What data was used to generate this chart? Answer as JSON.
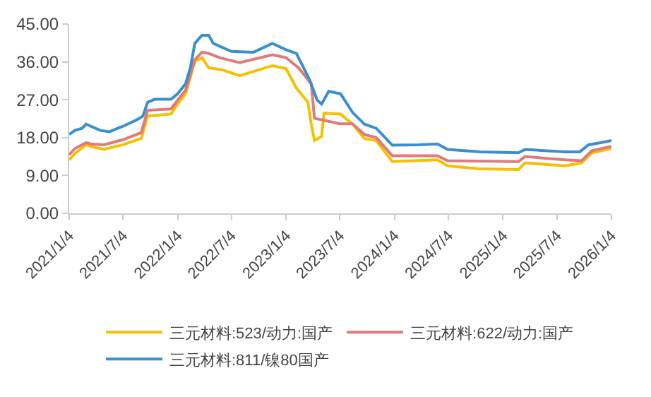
{
  "chart_data": {
    "type": "line",
    "xlim": [
      "2021-01-04",
      "2026-01-04"
    ],
    "ylim": [
      0,
      45
    ],
    "xticks": [
      {
        "value": "2021-01-04",
        "label": "2021/1/4"
      },
      {
        "value": "2021-07-04",
        "label": "2021/7/4"
      },
      {
        "value": "2022-01-04",
        "label": "2022/1/4"
      },
      {
        "value": "2022-07-04",
        "label": "2022/7/4"
      },
      {
        "value": "2023-01-04",
        "label": "2023/1/4"
      },
      {
        "value": "2023-07-04",
        "label": "2023/7/4"
      },
      {
        "value": "2024-01-04",
        "label": "2024/1/4"
      },
      {
        "value": "2024-07-04",
        "label": "2024/7/4"
      },
      {
        "value": "2025-01-04",
        "label": "2025/1/4"
      },
      {
        "value": "2025-07-04",
        "label": "2025/7/4"
      },
      {
        "value": "2026-01-04",
        "label": "2026/1/4"
      }
    ],
    "yticks": [
      {
        "value": 0,
        "label": "0.00"
      },
      {
        "value": 9,
        "label": "9.00"
      },
      {
        "value": 18,
        "label": "18.00"
      },
      {
        "value": 27,
        "label": "27.00"
      },
      {
        "value": 36,
        "label": "36.00"
      },
      {
        "value": 45,
        "label": "45.00"
      }
    ],
    "grid": false,
    "legend": "bottom",
    "line_style": "solid",
    "marker": "none",
    "series": [
      {
        "name": "三元材料:523/动力:国产",
        "color": "#f5c000",
        "x": [
          "2021-01-04",
          "2021-01-23",
          "2021-03-02",
          "2021-03-18",
          "2021-05-01",
          "2021-07-04",
          "2021-09-04",
          "2021-09-25",
          "2021-12-13",
          "2022-01-04",
          "2022-01-31",
          "2022-03-03",
          "2022-03-27",
          "2022-04-19",
          "2022-06-04",
          "2022-08-01",
          "2022-11-19",
          "2023-01-04",
          "2023-02-08",
          "2023-03-19",
          "2023-03-30",
          "2023-04-10",
          "2023-05-04",
          "2023-05-12",
          "2023-07-07",
          "2023-08-16",
          "2023-09-25",
          "2023-11-04",
          "2023-12-28",
          "2024-05-28",
          "2024-07-01",
          "2024-10-15",
          "2025-02-25",
          "2025-03-19",
          "2025-08-01",
          "2025-09-25",
          "2025-10-30",
          "2026-01-04"
        ],
        "values": [
          12.7,
          14.2,
          16.3,
          15.9,
          15.2,
          16.3,
          17.8,
          23.1,
          23.6,
          26,
          28.4,
          36.1,
          37,
          34.6,
          34.1,
          32.7,
          35.1,
          34.4,
          29.8,
          26.4,
          21.2,
          17.3,
          18.3,
          23.8,
          23.6,
          21.2,
          17.8,
          17.3,
          12.3,
          12.7,
          11.3,
          10.6,
          10.4,
          12,
          11.3,
          12,
          14.4,
          15.4
        ]
      },
      {
        "name": "三元材料:622/动力:国产",
        "color": "#e07b7b",
        "x": [
          "2021-01-04",
          "2021-01-23",
          "2021-03-02",
          "2021-03-18",
          "2021-05-01",
          "2021-07-04",
          "2021-09-04",
          "2021-09-25",
          "2021-12-13",
          "2022-01-04",
          "2022-01-31",
          "2022-03-03",
          "2022-03-27",
          "2022-04-19",
          "2022-05-25",
          "2022-08-01",
          "2022-11-19",
          "2023-01-04",
          "2023-02-15",
          "2023-03-30",
          "2023-04-10",
          "2023-07-04",
          "2023-08-16",
          "2023-09-25",
          "2023-11-04",
          "2023-12-28",
          "2024-05-28",
          "2024-07-01",
          "2025-02-25",
          "2025-03-19",
          "2025-08-01",
          "2025-09-25",
          "2025-10-30",
          "2026-01-04"
        ],
        "values": [
          13.9,
          15.4,
          16.8,
          16.5,
          16.3,
          17.5,
          19.2,
          24.5,
          24.8,
          26.9,
          29.3,
          36.5,
          38.3,
          38,
          37,
          35.8,
          37.7,
          37,
          34.6,
          30.8,
          22.6,
          21.3,
          21.3,
          18.75,
          18,
          13.7,
          13.7,
          12.5,
          12.3,
          13.5,
          12.7,
          12.5,
          14.9,
          15.9
        ]
      },
      {
        "name": "三元材料:811/镍80国产",
        "color": "#3a8fcf",
        "x": [
          "2021-01-04",
          "2021-01-23",
          "2021-02-16",
          "2021-03-02",
          "2021-03-18",
          "2021-04-19",
          "2021-05-20",
          "2021-07-04",
          "2021-08-16",
          "2021-09-09",
          "2021-09-25",
          "2021-10-19",
          "2021-12-13",
          "2022-01-04",
          "2022-01-31",
          "2022-02-16",
          "2022-03-03",
          "2022-03-27",
          "2022-04-19",
          "2022-05-04",
          "2022-07-04",
          "2022-09-17",
          "2022-11-19",
          "2023-01-04",
          "2023-02-08",
          "2023-03-25",
          "2023-04-19",
          "2023-05-04",
          "2023-05-28",
          "2023-07-07",
          "2023-08-16",
          "2023-09-25",
          "2023-11-04",
          "2023-12-28",
          "2024-03-25",
          "2024-05-28",
          "2024-07-01",
          "2024-10-19",
          "2025-02-25",
          "2025-03-19",
          "2025-08-01",
          "2025-09-19",
          "2025-10-19",
          "2025-11-28",
          "2026-01-04"
        ],
        "values": [
          18.75,
          19.7,
          20.2,
          21.2,
          20.7,
          19.7,
          19.4,
          20.7,
          22.1,
          23.1,
          26.4,
          27.1,
          27.1,
          28.4,
          30.8,
          34.6,
          40.4,
          42.3,
          42.3,
          40.4,
          38.5,
          38.3,
          40.4,
          38.9,
          38,
          31.7,
          26.9,
          26,
          29,
          28.4,
          24,
          21.2,
          20.2,
          16.2,
          16.3,
          16.5,
          15.2,
          14.6,
          14.4,
          15.2,
          14.6,
          14.6,
          16.3,
          16.8,
          17.3
        ]
      }
    ]
  }
}
